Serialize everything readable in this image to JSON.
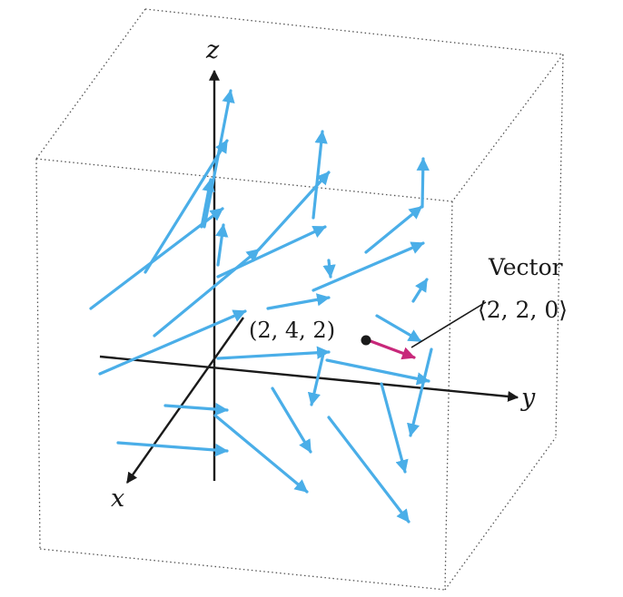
{
  "figure": {
    "axis_labels": {
      "x": "x",
      "y": "y",
      "z": "z"
    },
    "point_label": "(2, 4, 2)",
    "vector_title": "Vector",
    "vector_value": "⟨2, 2, 0⟩"
  },
  "colors": {
    "field_vectors": "#4aaee8",
    "highlight_vector": "#c8287a",
    "axes": "#1a1a1a",
    "box": "#555555",
    "background": "#ffffff"
  }
}
